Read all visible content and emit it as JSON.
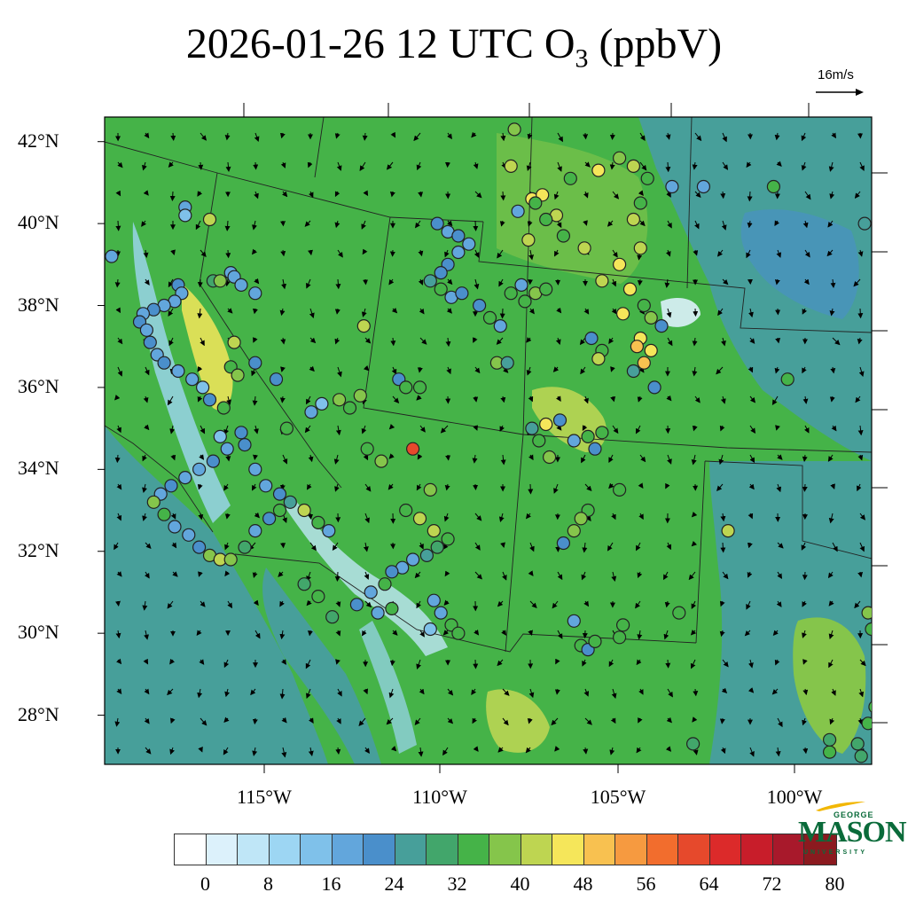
{
  "title": {
    "main": "2026-01-26 12 UTC O",
    "sub": "3",
    "unit": " (ppbV)"
  },
  "wind_reference": {
    "label": "16m/s",
    "speed": 16
  },
  "latitude_labels": [
    "42°N",
    "40°N",
    "38°N",
    "36°N",
    "34°N",
    "32°N",
    "30°N",
    "28°N"
  ],
  "longitude_labels": [
    "115°W",
    "110°W",
    "105°W",
    "100°W"
  ],
  "colorbar": {
    "colors": [
      "#ffffff",
      "#dcf1fb",
      "#bfe6f7",
      "#9dd6f3",
      "#7fc1ea",
      "#62a6dc",
      "#4a8fcb",
      "#479f9a",
      "#42a66b",
      "#45b348",
      "#85c54b",
      "#bed551",
      "#f5e65a",
      "#f8c150",
      "#f69a40",
      "#f26d2d",
      "#e6492c",
      "#dc2a2a",
      "#c81d2a",
      "#a8192b",
      "#8b1a1f"
    ],
    "labels": [
      "0",
      "8",
      "16",
      "24",
      "32",
      "40",
      "48",
      "56",
      "64",
      "72",
      "80"
    ]
  },
  "logo": {
    "top": "GEORGE",
    "main": "MASON",
    "bottom": "UNIVERSITY"
  },
  "stations": [
    [
      -117.3,
      40.4,
      20
    ],
    [
      -117.3,
      40.2,
      18
    ],
    [
      -116.6,
      40.1,
      44
    ],
    [
      -119.4,
      39.2,
      22
    ],
    [
      -116.5,
      38.6,
      34
    ],
    [
      -116.3,
      38.6,
      40
    ],
    [
      -116.0,
      38.8,
      20
    ],
    [
      -115.9,
      38.7,
      22
    ],
    [
      -115.7,
      38.5,
      20
    ],
    [
      -115.3,
      38.3,
      22
    ],
    [
      -117.5,
      38.5,
      26
    ],
    [
      -117.4,
      38.3,
      22
    ],
    [
      -117.6,
      38.1,
      20
    ],
    [
      -117.9,
      38.0,
      22
    ],
    [
      -118.2,
      37.9,
      24
    ],
    [
      -118.5,
      37.8,
      20
    ],
    [
      -118.6,
      37.6,
      24
    ],
    [
      -118.4,
      37.4,
      22
    ],
    [
      -118.3,
      37.1,
      26
    ],
    [
      -118.1,
      36.8,
      20
    ],
    [
      -117.9,
      36.6,
      24
    ],
    [
      -117.5,
      36.4,
      22
    ],
    [
      -117.1,
      36.2,
      20
    ],
    [
      -116.8,
      36.0,
      18
    ],
    [
      -116.6,
      35.7,
      26
    ],
    [
      -116.2,
      35.5,
      36
    ],
    [
      -116.0,
      36.5,
      38
    ],
    [
      -115.8,
      36.3,
      42
    ],
    [
      -115.3,
      36.6,
      26
    ],
    [
      -114.7,
      36.2,
      24
    ],
    [
      -115.9,
      37.1,
      44
    ],
    [
      -116.3,
      34.8,
      18
    ],
    [
      -116.1,
      34.5,
      22
    ],
    [
      -116.5,
      34.2,
      26
    ],
    [
      -116.9,
      34.0,
      20
    ],
    [
      -117.3,
      33.8,
      22
    ],
    [
      -117.7,
      33.6,
      24
    ],
    [
      -118.0,
      33.4,
      22
    ],
    [
      -118.2,
      33.2,
      40
    ],
    [
      -117.9,
      32.9,
      38
    ],
    [
      -117.6,
      32.6,
      22
    ],
    [
      -117.2,
      32.4,
      20
    ],
    [
      -116.9,
      32.1,
      26
    ],
    [
      -116.6,
      31.9,
      40
    ],
    [
      -116.3,
      31.8,
      44
    ],
    [
      -116.0,
      31.8,
      40
    ],
    [
      -115.6,
      32.1,
      34
    ],
    [
      -115.3,
      32.5,
      22
    ],
    [
      -114.9,
      32.8,
      26
    ],
    [
      -114.6,
      33.0,
      36
    ],
    [
      -115.7,
      34.9,
      24
    ],
    [
      -115.3,
      34.0,
      20
    ],
    [
      -115.0,
      33.6,
      22
    ],
    [
      -114.6,
      33.4,
      24
    ],
    [
      -114.3,
      33.2,
      30
    ],
    [
      -113.9,
      33.0,
      46
    ],
    [
      -113.5,
      32.7,
      38
    ],
    [
      -113.2,
      32.5,
      20
    ],
    [
      -115.6,
      34.6,
      26
    ],
    [
      -114.4,
      35.0,
      38
    ],
    [
      -113.7,
      35.4,
      22
    ],
    [
      -113.4,
      35.6,
      18
    ],
    [
      -112.9,
      35.7,
      40
    ],
    [
      -112.6,
      35.5,
      36
    ],
    [
      -112.3,
      35.8,
      40
    ],
    [
      -111.2,
      36.2,
      26
    ],
    [
      -111.0,
      36.0,
      36
    ],
    [
      -110.6,
      36.0,
      36
    ],
    [
      -112.1,
      34.5,
      38
    ],
    [
      -111.7,
      34.2,
      40
    ],
    [
      -110.8,
      34.5,
      64
    ],
    [
      -110.3,
      33.5,
      40
    ],
    [
      -111.0,
      33.0,
      36
    ],
    [
      -110.6,
      32.8,
      46
    ],
    [
      -110.2,
      32.5,
      44
    ],
    [
      -109.8,
      32.3,
      38
    ],
    [
      -110.1,
      32.1,
      34
    ],
    [
      -110.4,
      31.9,
      30
    ],
    [
      -110.8,
      31.8,
      22
    ],
    [
      -111.1,
      31.6,
      20
    ],
    [
      -111.4,
      31.5,
      24
    ],
    [
      -111.6,
      31.2,
      38
    ],
    [
      -112.0,
      31.0,
      22
    ],
    [
      -112.4,
      30.7,
      24
    ],
    [
      -113.1,
      30.4,
      32
    ],
    [
      -113.5,
      30.9,
      36
    ],
    [
      -113.9,
      31.2,
      32
    ],
    [
      -110.2,
      30.8,
      22
    ],
    [
      -110.0,
      30.5,
      20
    ],
    [
      -109.7,
      30.2,
      36
    ],
    [
      -109.5,
      30.0,
      38
    ],
    [
      -110.3,
      30.1,
      18
    ],
    [
      -111.8,
      30.5,
      20
    ],
    [
      -111.4,
      30.6,
      38
    ],
    [
      -110.1,
      40.0,
      26
    ],
    [
      -109.8,
      39.8,
      22
    ],
    [
      -109.5,
      39.7,
      24
    ],
    [
      -109.2,
      39.5,
      20
    ],
    [
      -109.5,
      39.3,
      22
    ],
    [
      -109.8,
      39.0,
      26
    ],
    [
      -110.0,
      38.8,
      24
    ],
    [
      -110.3,
      38.6,
      30
    ],
    [
      -110.0,
      38.4,
      36
    ],
    [
      -109.7,
      38.2,
      20
    ],
    [
      -109.4,
      38.3,
      24
    ],
    [
      -108.9,
      38.0,
      26
    ],
    [
      -108.6,
      37.7,
      36
    ],
    [
      -108.3,
      37.5,
      22
    ],
    [
      -112.2,
      37.5,
      46
    ],
    [
      -108.0,
      38.3,
      38
    ],
    [
      -107.6,
      38.1,
      38
    ],
    [
      -107.3,
      38.3,
      40
    ],
    [
      -107.7,
      38.5,
      22
    ],
    [
      -107.0,
      38.4,
      36
    ],
    [
      -108.4,
      36.6,
      42
    ],
    [
      -108.1,
      36.6,
      28
    ],
    [
      -107.9,
      42.3,
      40
    ],
    [
      -108.0,
      41.4,
      44
    ],
    [
      -107.4,
      40.6,
      48
    ],
    [
      -107.1,
      40.7,
      50
    ],
    [
      -107.3,
      40.5,
      36
    ],
    [
      -106.7,
      40.2,
      44
    ],
    [
      -107.0,
      40.1,
      38
    ],
    [
      -107.5,
      39.6,
      44
    ],
    [
      -106.5,
      39.7,
      36
    ],
    [
      -107.8,
      40.3,
      22
    ],
    [
      -105.9,
      39.4,
      44
    ],
    [
      -106.3,
      41.1,
      36
    ],
    [
      -105.5,
      41.3,
      48
    ],
    [
      -104.9,
      41.6,
      40
    ],
    [
      -104.5,
      41.4,
      44
    ],
    [
      -104.1,
      41.1,
      36
    ],
    [
      -103.4,
      40.9,
      22
    ],
    [
      -104.3,
      40.5,
      38
    ],
    [
      -104.5,
      40.1,
      46
    ],
    [
      -104.3,
      39.4,
      44
    ],
    [
      -104.9,
      39.0,
      50
    ],
    [
      -105.4,
      38.6,
      44
    ],
    [
      -104.6,
      38.4,
      50
    ],
    [
      -104.2,
      38.0,
      36
    ],
    [
      -104.0,
      37.7,
      42
    ],
    [
      -104.3,
      37.2,
      50
    ],
    [
      -104.4,
      37.0,
      54
    ],
    [
      -104.0,
      36.9,
      48
    ],
    [
      -104.2,
      36.6,
      52
    ],
    [
      -104.5,
      36.4,
      30
    ],
    [
      -103.9,
      36.0,
      24
    ],
    [
      -103.7,
      37.5,
      26
    ],
    [
      -105.7,
      37.2,
      24
    ],
    [
      -105.4,
      36.9,
      38
    ],
    [
      -105.5,
      36.7,
      44
    ],
    [
      -104.8,
      37.8,
      48
    ],
    [
      -100.5,
      40.9,
      38
    ],
    [
      -100.1,
      36.2,
      38
    ],
    [
      -107.4,
      35.0,
      28
    ],
    [
      -107.0,
      35.1,
      48
    ],
    [
      -106.6,
      35.2,
      24
    ],
    [
      -106.2,
      34.7,
      20
    ],
    [
      -105.8,
      34.8,
      38
    ],
    [
      -105.4,
      34.9,
      36
    ],
    [
      -107.2,
      34.7,
      38
    ],
    [
      -106.9,
      34.3,
      40
    ],
    [
      -105.6,
      34.5,
      26
    ],
    [
      -104.9,
      33.5,
      36
    ],
    [
      -105.8,
      33.0,
      38
    ],
    [
      -106.0,
      32.8,
      40
    ],
    [
      -106.2,
      32.5,
      40
    ],
    [
      -106.5,
      32.2,
      26
    ],
    [
      -104.8,
      30.2,
      38
    ],
    [
      -104.9,
      29.9,
      38
    ],
    [
      -106.2,
      30.3,
      20
    ],
    [
      -106.0,
      29.7,
      36
    ],
    [
      -105.8,
      29.6,
      24
    ],
    [
      -105.6,
      29.8,
      36
    ],
    [
      -103.2,
      30.5,
      36
    ],
    [
      -101.8,
      32.5,
      44
    ],
    [
      -102.8,
      27.3,
      34
    ],
    [
      -98.9,
      27.1,
      36
    ],
    [
      -98.9,
      27.4,
      34
    ],
    [
      -98.1,
      27.3,
      34
    ],
    [
      -98.0,
      27.0,
      34
    ],
    [
      -97.8,
      27.8,
      36
    ],
    [
      -97.6,
      28.2,
      36
    ],
    [
      -97.7,
      30.1,
      38
    ],
    [
      -97.8,
      30.5,
      40
    ],
    [
      -97.9,
      40.0,
      30
    ],
    [
      -102.5,
      40.9,
      20
    ]
  ]
}
